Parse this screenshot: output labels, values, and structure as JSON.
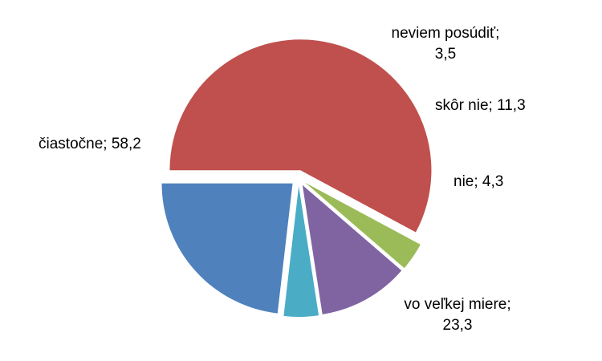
{
  "chart_data": {
    "type": "pie",
    "exploded": true,
    "start_angle_deg": 180,
    "direction": "clockwise",
    "slices": [
      {
        "name": "vo veľkej miere",
        "value": 23.3,
        "color": "#4F81BD",
        "label_line1": "vo veľkej miere;",
        "label_line2": "23,3"
      },
      {
        "name": "nie",
        "value": 4.3,
        "color": "#4BACC6",
        "label_line1": "nie; 4,3",
        "label_line2": ""
      },
      {
        "name": "skôr nie",
        "value": 11.3,
        "color": "#8064A2",
        "label_line1": "skôr nie; 11,3",
        "label_line2": ""
      },
      {
        "name": "neviem posúdiť",
        "value": 3.5,
        "color": "#9BBB59",
        "label_line1": "neviem posúdiť;",
        "label_line2": "3,5"
      },
      {
        "name": "čiastočne",
        "value": 58.2,
        "color": "#C0504D",
        "label_line1": "čiastočne; 58,2",
        "label_line2": ""
      }
    ],
    "legend": "none",
    "data_labels": "outside"
  }
}
